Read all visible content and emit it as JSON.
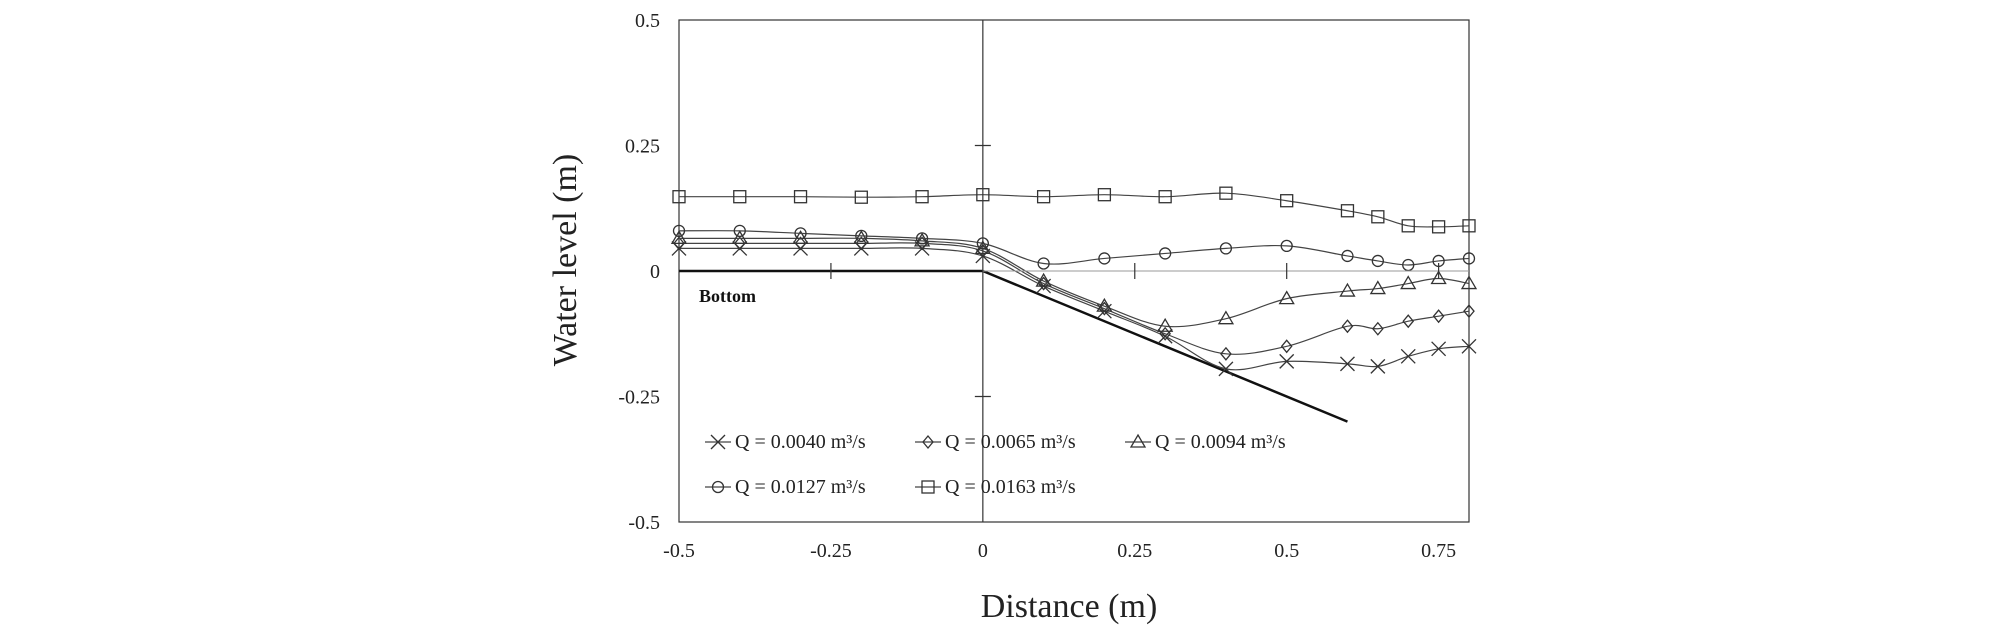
{
  "chart_data": {
    "type": "line",
    "title": "",
    "xlabel": "Distance (m)",
    "ylabel": "Water level (m)",
    "xlim": [
      -0.5,
      0.8
    ],
    "ylim": [
      -0.5,
      0.5
    ],
    "x_tick_labels": [
      "-0.5",
      "-0.25",
      "0",
      "0.25",
      "0.5",
      "0.75"
    ],
    "x_tick_values": [
      -0.5,
      -0.25,
      0,
      0.25,
      0.5,
      0.75
    ],
    "y_tick_labels": [
      "0.5",
      "0.25",
      "0",
      "-0.25",
      "-0.5"
    ],
    "y_tick_values": [
      0.5,
      0.25,
      0,
      -0.25,
      -0.5
    ],
    "grid": false,
    "legend_position": "bottom-left",
    "bottom_annotation": "Bottom",
    "bottom_profile": {
      "x": [
        -0.5,
        0,
        0.6
      ],
      "y": [
        0,
        0,
        -0.3
      ]
    },
    "series": [
      {
        "name": "Q = 0.0040  m³/s",
        "marker": "x",
        "x": [
          -0.5,
          -0.4,
          -0.3,
          -0.2,
          -0.1,
          0,
          0.1,
          0.2,
          0.3,
          0.4,
          0.5,
          0.6,
          0.65,
          0.7,
          0.75,
          0.8
        ],
        "y": [
          0.045,
          0.045,
          0.045,
          0.045,
          0.045,
          0.03,
          -0.03,
          -0.08,
          -0.13,
          -0.195,
          -0.18,
          -0.185,
          -0.19,
          -0.17,
          -0.155,
          -0.15
        ]
      },
      {
        "name": "Q = 0.0065  m³/s",
        "marker": "diamond",
        "x": [
          -0.5,
          -0.4,
          -0.3,
          -0.2,
          -0.1,
          0,
          0.1,
          0.2,
          0.3,
          0.4,
          0.5,
          0.6,
          0.65,
          0.7,
          0.75,
          0.8
        ],
        "y": [
          0.055,
          0.055,
          0.055,
          0.055,
          0.055,
          0.04,
          -0.025,
          -0.075,
          -0.125,
          -0.165,
          -0.15,
          -0.11,
          -0.115,
          -0.1,
          -0.09,
          -0.08
        ]
      },
      {
        "name": "Q = 0.0094  m³/s",
        "marker": "triangle",
        "x": [
          -0.5,
          -0.4,
          -0.3,
          -0.2,
          -0.1,
          0,
          0.1,
          0.2,
          0.3,
          0.4,
          0.5,
          0.6,
          0.65,
          0.7,
          0.75,
          0.8
        ],
        "y": [
          0.065,
          0.065,
          0.065,
          0.065,
          0.06,
          0.045,
          -0.02,
          -0.07,
          -0.11,
          -0.095,
          -0.055,
          -0.04,
          -0.035,
          -0.025,
          -0.015,
          -0.025
        ]
      },
      {
        "name": "Q = 0.0127  m³/s",
        "marker": "circle",
        "x": [
          -0.5,
          -0.4,
          -0.3,
          -0.2,
          -0.1,
          0,
          0.1,
          0.2,
          0.3,
          0.4,
          0.5,
          0.6,
          0.65,
          0.7,
          0.75,
          0.8
        ],
        "y": [
          0.08,
          0.08,
          0.075,
          0.07,
          0.065,
          0.055,
          0.015,
          0.025,
          0.035,
          0.045,
          0.05,
          0.03,
          0.02,
          0.012,
          0.02,
          0.025
        ]
      },
      {
        "name": "Q = 0.0163  m³/s",
        "marker": "square",
        "x": [
          -0.5,
          -0.4,
          -0.3,
          -0.2,
          -0.1,
          0,
          0.1,
          0.2,
          0.3,
          0.4,
          0.5,
          0.6,
          0.65,
          0.7,
          0.75,
          0.8
        ],
        "y": [
          0.148,
          0.148,
          0.148,
          0.147,
          0.148,
          0.152,
          0.148,
          0.152,
          0.148,
          0.155,
          0.14,
          0.12,
          0.108,
          0.09,
          0.088,
          0.09
        ]
      }
    ]
  }
}
